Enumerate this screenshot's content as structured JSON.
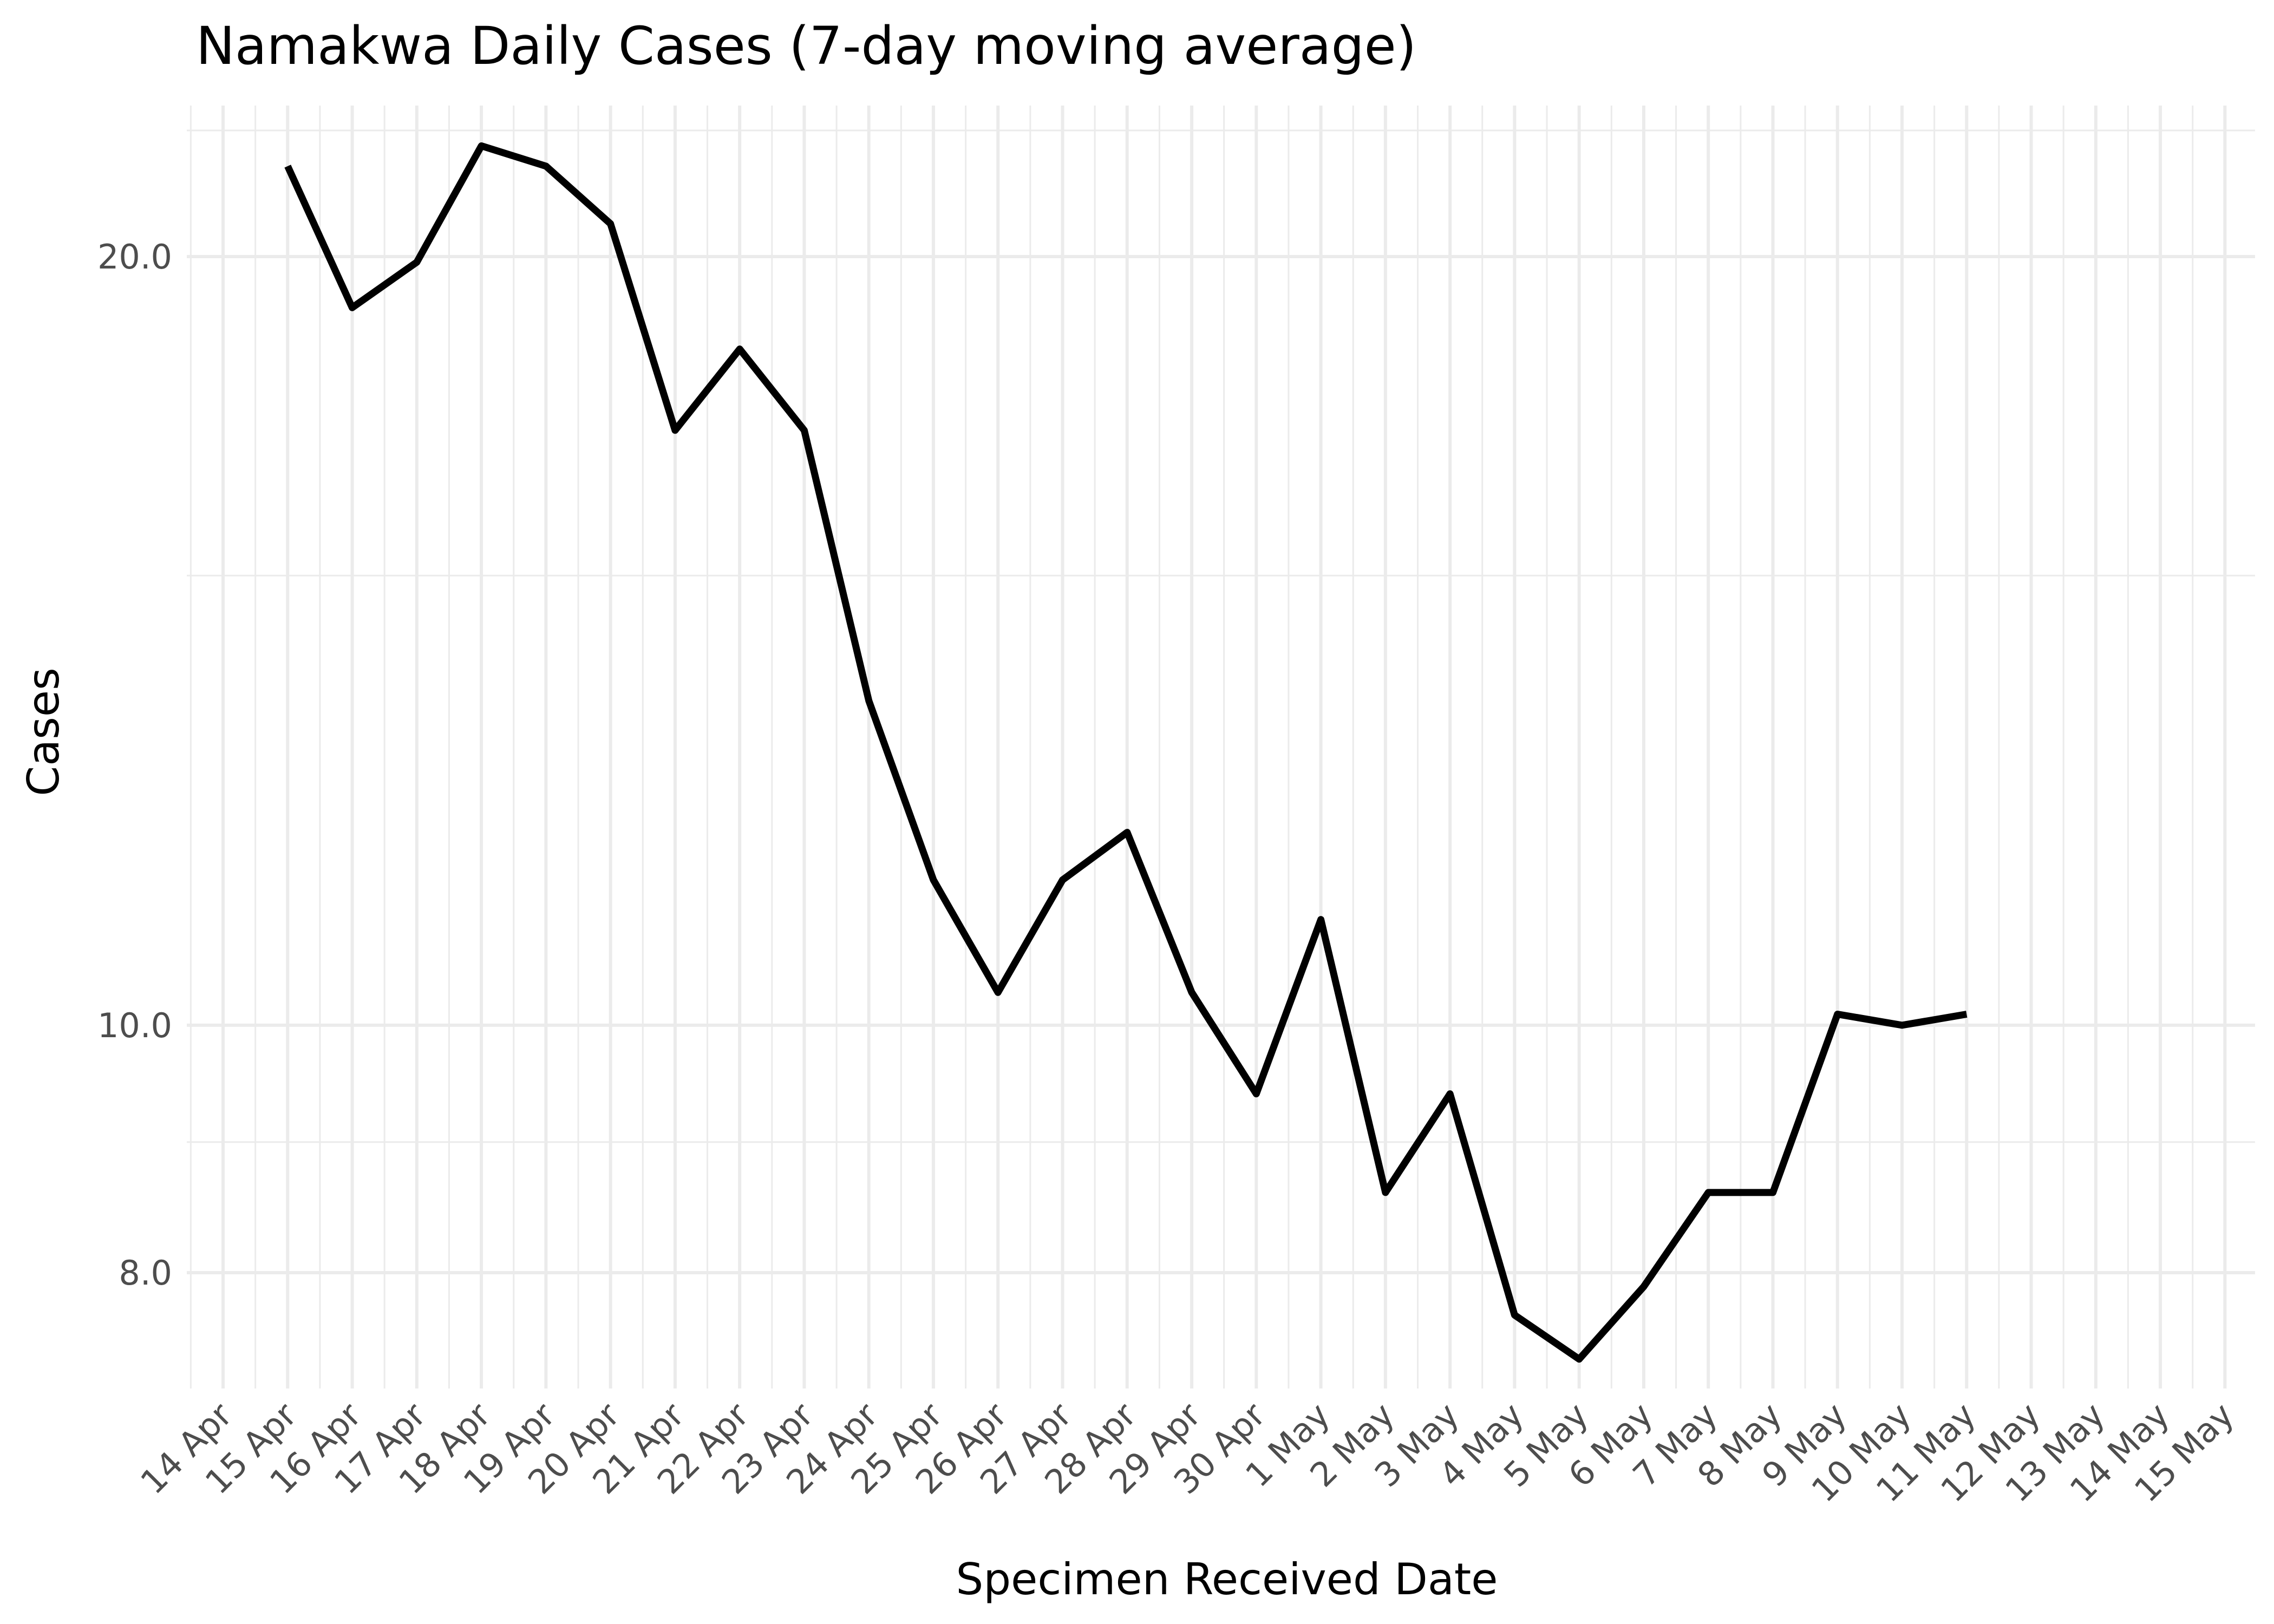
{
  "chart_data": {
    "type": "line",
    "title": "Namakwa Daily Cases (7-day moving average)",
    "xlabel": "Specimen Received Date",
    "ylabel": "Cases",
    "y_scale": "log",
    "ylim": [
      7.0,
      23.5
    ],
    "y_major_ticks": [
      8.0,
      10.0,
      20.0
    ],
    "y_tick_labels": [
      "8.0",
      "10.0",
      "20.0"
    ],
    "y_minor_ticks": [
      9.0,
      15.0
    ],
    "x_ticks": [
      "14 Apr",
      "15 Apr",
      "16 Apr",
      "17 Apr",
      "18 Apr",
      "19 Apr",
      "20 Apr",
      "21 Apr",
      "22 Apr",
      "23 Apr",
      "24 Apr",
      "25 Apr",
      "26 Apr",
      "27 Apr",
      "28 Apr",
      "29 Apr",
      "30 Apr",
      "1 May",
      "2 May",
      "3 May",
      "4 May",
      "5 May",
      "6 May",
      "7 May",
      "8 May",
      "9 May",
      "10 May",
      "11 May",
      "12 May",
      "13 May",
      "14 May",
      "15 May"
    ],
    "x_tick_rotation": 45,
    "xlim": [
      "13 Apr",
      "15 May"
    ],
    "grid": true,
    "legend": "none",
    "line_color": "#000000",
    "series": [
      {
        "x": [
          "15 Apr",
          "16 Apr",
          "17 Apr",
          "18 Apr",
          "19 Apr",
          "20 Apr",
          "21 Apr",
          "22 Apr",
          "23 Apr",
          "24 Apr",
          "25 Apr",
          "26 Apr",
          "27 Apr",
          "28 Apr",
          "29 Apr",
          "30 Apr",
          "1 May",
          "2 May",
          "3 May",
          "4 May",
          "5 May",
          "6 May",
          "7 May",
          "8 May",
          "9 May",
          "10 May",
          "11 May"
        ],
        "values": [
          21.7,
          19.1,
          19.9,
          22.1,
          21.7,
          20.6,
          17.1,
          18.4,
          17.1,
          13.4,
          11.4,
          10.3,
          11.4,
          11.9,
          10.3,
          9.4,
          11.0,
          8.6,
          9.4,
          7.7,
          7.4,
          7.9,
          8.6,
          8.6,
          10.1,
          10.0,
          10.1
        ]
      }
    ]
  }
}
